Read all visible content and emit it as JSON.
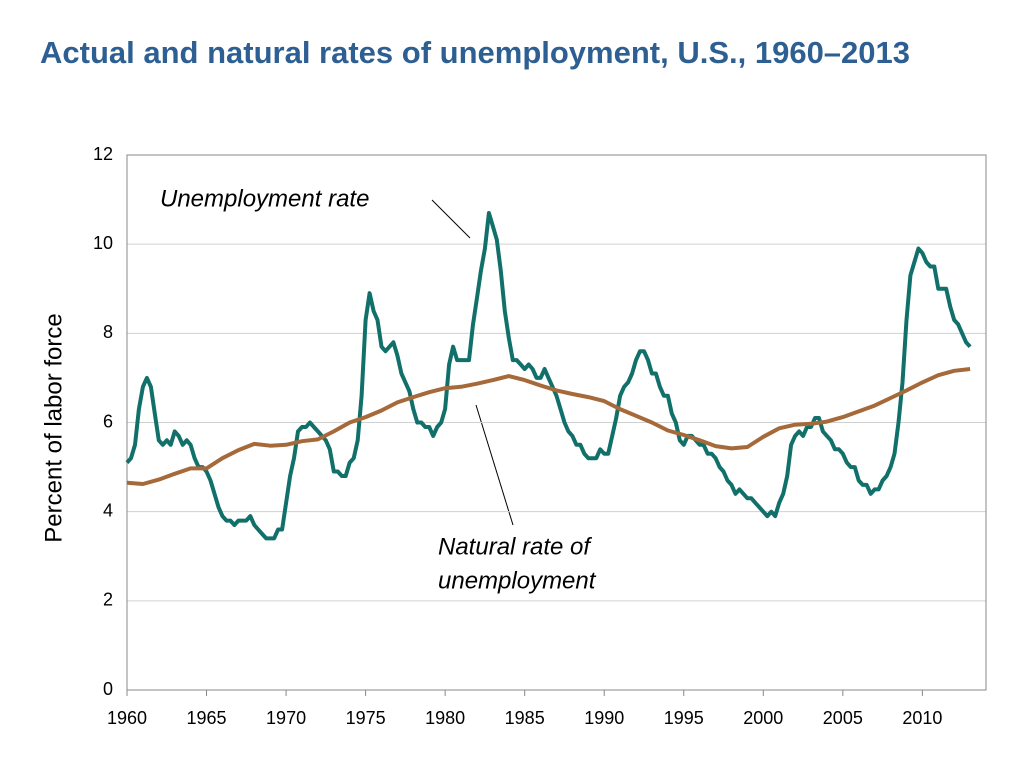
{
  "chart_data": {
    "type": "line",
    "title": "Actual and natural rates of unemployment, U.S., 1960–2013",
    "ylabel": "Percent of labor force",
    "xlim": [
      1960,
      2014
    ],
    "ylim": [
      0,
      12
    ],
    "xticks": [
      1960,
      1965,
      1970,
      1975,
      1980,
      1985,
      1990,
      1995,
      2000,
      2005,
      2010
    ],
    "yticks": [
      0,
      2,
      4,
      6,
      8,
      10,
      12
    ],
    "grid": true,
    "annotations": [
      {
        "lines": [
          "Unemployment rate"
        ]
      },
      {
        "lines": [
          "Natural rate of",
          "unemployment"
        ]
      }
    ],
    "series": [
      {
        "color": "#12706a",
        "x": [
          1960,
          1960.25,
          1960.5,
          1960.75,
          1961,
          1961.25,
          1961.5,
          1961.75,
          1962,
          1962.25,
          1962.5,
          1962.75,
          1963,
          1963.25,
          1963.5,
          1963.75,
          1964,
          1964.25,
          1964.5,
          1964.75,
          1965,
          1965.25,
          1965.5,
          1965.75,
          1966,
          1966.25,
          1966.5,
          1966.75,
          1967,
          1967.25,
          1967.5,
          1967.75,
          1968,
          1968.25,
          1968.5,
          1968.75,
          1969,
          1969.25,
          1969.5,
          1969.75,
          1970,
          1970.25,
          1970.5,
          1970.75,
          1971,
          1971.25,
          1971.5,
          1971.75,
          1972,
          1972.25,
          1972.5,
          1972.75,
          1973,
          1973.25,
          1973.5,
          1973.75,
          1974,
          1974.25,
          1974.5,
          1974.75,
          1975,
          1975.25,
          1975.5,
          1975.75,
          1976,
          1976.25,
          1976.5,
          1976.75,
          1977,
          1977.25,
          1977.5,
          1977.75,
          1978,
          1978.25,
          1978.5,
          1978.75,
          1979,
          1979.25,
          1979.5,
          1979.75,
          1980,
          1980.25,
          1980.5,
          1980.75,
          1981,
          1981.25,
          1981.5,
          1981.75,
          1982,
          1982.25,
          1982.5,
          1982.75,
          1983,
          1983.25,
          1983.5,
          1983.75,
          1984,
          1984.25,
          1984.5,
          1984.75,
          1985,
          1985.25,
          1985.5,
          1985.75,
          1986,
          1986.25,
          1986.5,
          1986.75,
          1987,
          1987.25,
          1987.5,
          1987.75,
          1988,
          1988.25,
          1988.5,
          1988.75,
          1989,
          1989.25,
          1989.5,
          1989.75,
          1990,
          1990.25,
          1990.5,
          1990.75,
          1991,
          1991.25,
          1991.5,
          1991.75,
          1992,
          1992.25,
          1992.5,
          1992.75,
          1993,
          1993.25,
          1993.5,
          1993.75,
          1994,
          1994.25,
          1994.5,
          1994.75,
          1995,
          1995.25,
          1995.5,
          1995.75,
          1996,
          1996.25,
          1996.5,
          1996.75,
          1997,
          1997.25,
          1997.5,
          1997.75,
          1998,
          1998.25,
          1998.5,
          1998.75,
          1999,
          1999.25,
          1999.5,
          1999.75,
          2000,
          2000.25,
          2000.5,
          2000.75,
          2001,
          2001.25,
          2001.5,
          2001.75,
          2002,
          2002.25,
          2002.5,
          2002.75,
          2003,
          2003.25,
          2003.5,
          2003.75,
          2004,
          2004.25,
          2004.5,
          2004.75,
          2005,
          2005.25,
          2005.5,
          2005.75,
          2006,
          2006.25,
          2006.5,
          2006.75,
          2007,
          2007.25,
          2007.5,
          2007.75,
          2008,
          2008.25,
          2008.5,
          2008.75,
          2009,
          2009.25,
          2009.5,
          2009.75,
          2010,
          2010.25,
          2010.5,
          2010.75,
          2011,
          2011.25,
          2011.5,
          2011.75,
          2012,
          2012.25,
          2012.5,
          2012.75,
          2013
        ],
        "values": [
          5.1,
          5.2,
          5.5,
          6.3,
          6.8,
          7.0,
          6.8,
          6.2,
          5.6,
          5.5,
          5.6,
          5.5,
          5.8,
          5.7,
          5.5,
          5.6,
          5.5,
          5.2,
          5.0,
          5.0,
          4.9,
          4.7,
          4.4,
          4.1,
          3.9,
          3.8,
          3.8,
          3.7,
          3.8,
          3.8,
          3.8,
          3.9,
          3.7,
          3.6,
          3.5,
          3.4,
          3.4,
          3.4,
          3.6,
          3.6,
          4.2,
          4.8,
          5.2,
          5.8,
          5.9,
          5.9,
          6.0,
          5.9,
          5.8,
          5.7,
          5.6,
          5.4,
          4.9,
          4.9,
          4.8,
          4.8,
          5.1,
          5.2,
          5.6,
          6.6,
          8.3,
          8.9,
          8.5,
          8.3,
          7.7,
          7.6,
          7.7,
          7.8,
          7.5,
          7.1,
          6.9,
          6.7,
          6.3,
          6.0,
          6.0,
          5.9,
          5.9,
          5.7,
          5.9,
          6.0,
          6.3,
          7.3,
          7.7,
          7.4,
          7.4,
          7.4,
          7.4,
          8.2,
          8.8,
          9.4,
          9.9,
          10.7,
          10.4,
          10.1,
          9.4,
          8.5,
          7.9,
          7.4,
          7.4,
          7.3,
          7.2,
          7.3,
          7.2,
          7.0,
          7.0,
          7.2,
          7.0,
          6.8,
          6.6,
          6.3,
          6.0,
          5.8,
          5.7,
          5.5,
          5.5,
          5.3,
          5.2,
          5.2,
          5.2,
          5.4,
          5.3,
          5.3,
          5.7,
          6.1,
          6.6,
          6.8,
          6.9,
          7.1,
          7.4,
          7.6,
          7.6,
          7.4,
          7.1,
          7.1,
          6.8,
          6.6,
          6.6,
          6.2,
          6.0,
          5.6,
          5.5,
          5.7,
          5.7,
          5.6,
          5.5,
          5.5,
          5.3,
          5.3,
          5.2,
          5.0,
          4.9,
          4.7,
          4.6,
          4.4,
          4.5,
          4.4,
          4.3,
          4.3,
          4.2,
          4.1,
          4.0,
          3.9,
          4.0,
          3.9,
          4.2,
          4.4,
          4.8,
          5.5,
          5.7,
          5.8,
          5.7,
          5.9,
          5.9,
          6.1,
          6.1,
          5.8,
          5.7,
          5.6,
          5.4,
          5.4,
          5.3,
          5.1,
          5.0,
          5.0,
          4.7,
          4.6,
          4.6,
          4.4,
          4.5,
          4.5,
          4.7,
          4.8,
          5.0,
          5.3,
          6.0,
          6.9,
          8.3,
          9.3,
          9.6,
          9.9,
          9.8,
          9.6,
          9.5,
          9.5,
          9.0,
          9.0,
          9.0,
          8.6,
          8.3,
          8.2,
          8.0,
          7.8,
          7.7
        ]
      },
      {
        "color": "#a5693a",
        "x": [
          1960,
          1961,
          1962,
          1963,
          1964,
          1965,
          1966,
          1967,
          1968,
          1969,
          1970,
          1971,
          1972,
          1973,
          1974,
          1975,
          1976,
          1977,
          1978,
          1979,
          1980,
          1981,
          1982,
          1983,
          1984,
          1985,
          1986,
          1987,
          1988,
          1989,
          1990,
          1991,
          1992,
          1993,
          1994,
          1995,
          1996,
          1997,
          1998,
          1999,
          2000,
          2001,
          2002,
          2003,
          2004,
          2005,
          2006,
          2007,
          2008,
          2009,
          2010,
          2011,
          2012,
          2013
        ],
        "values": [
          4.65,
          4.62,
          4.72,
          4.85,
          4.97,
          4.97,
          5.2,
          5.38,
          5.52,
          5.48,
          5.5,
          5.58,
          5.62,
          5.8,
          6.0,
          6.12,
          6.27,
          6.45,
          6.57,
          6.68,
          6.77,
          6.8,
          6.87,
          6.95,
          7.04,
          6.95,
          6.83,
          6.72,
          6.64,
          6.57,
          6.48,
          6.3,
          6.15,
          6.0,
          5.82,
          5.72,
          5.6,
          5.47,
          5.42,
          5.45,
          5.68,
          5.87,
          5.95,
          5.97,
          6.02,
          6.12,
          6.25,
          6.38,
          6.55,
          6.72,
          6.9,
          7.06,
          7.16,
          7.2
        ]
      }
    ]
  }
}
